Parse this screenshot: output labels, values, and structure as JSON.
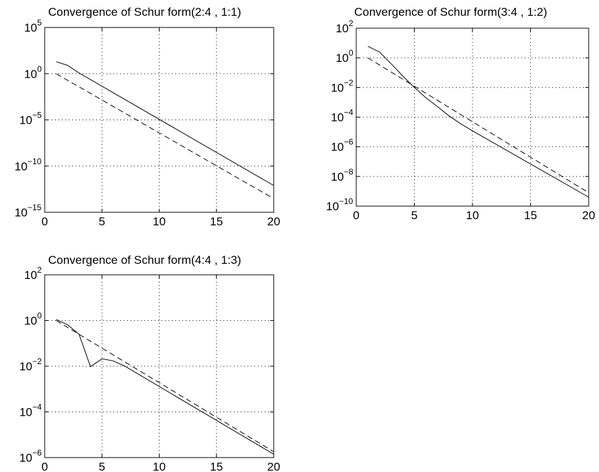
{
  "chart_data": [
    {
      "type": "line",
      "title": "Convergence of Schur form(2:4 , 1:1)",
      "xlim": [
        0,
        20
      ],
      "xticks": [
        0,
        5,
        10,
        15,
        20
      ],
      "yscale": "log",
      "ylim": [
        1e-15,
        100000.0
      ],
      "yticks": [
        {
          "base": "10",
          "exp": "5",
          "value": 100000.0
        },
        {
          "base": "10",
          "exp": "0",
          "value": 1
        },
        {
          "base": "10",
          "exp": "−5",
          "value": 1e-05
        },
        {
          "base": "10",
          "exp": "−10",
          "value": 1e-10
        },
        {
          "base": "10",
          "exp": "−15",
          "value": 1e-15
        }
      ],
      "grid": true,
      "series": [
        {
          "style": "solid",
          "x": [
            1,
            2,
            3,
            20
          ],
          "y": [
            20,
            8,
            1.2,
            8e-13
          ]
        },
        {
          "style": "dashed",
          "x": [
            1,
            20
          ],
          "y": [
            1,
            3e-14
          ]
        }
      ]
    },
    {
      "type": "line",
      "title": "Convergence of Schur form(3:4 , 1:2)",
      "xlim": [
        0,
        20
      ],
      "xticks": [
        0,
        5,
        10,
        15,
        20
      ],
      "yscale": "log",
      "ylim": [
        1e-10,
        100.0
      ],
      "yticks": [
        {
          "base": "10",
          "exp": "2",
          "value": 100.0
        },
        {
          "base": "10",
          "exp": "0",
          "value": 1
        },
        {
          "base": "10",
          "exp": "−2",
          "value": 0.01
        },
        {
          "base": "10",
          "exp": "−4",
          "value": 0.0001
        },
        {
          "base": "10",
          "exp": "−6",
          "value": 1e-06
        },
        {
          "base": "10",
          "exp": "−8",
          "value": 1e-08
        },
        {
          "base": "10",
          "exp": "−10",
          "value": 1e-10
        }
      ],
      "grid": true,
      "series": [
        {
          "style": "solid",
          "x": [
            1,
            2,
            3,
            4,
            5,
            6,
            7,
            8,
            9,
            10,
            20
          ],
          "y": [
            6,
            2.5,
            0.4,
            0.06,
            0.01,
            0.002,
            0.0005,
            0.00012,
            3.5e-05,
            1.2e-05,
            4e-10
          ]
        },
        {
          "style": "dashed",
          "x": [
            1,
            20
          ],
          "y": [
            1,
            8e-10
          ]
        }
      ]
    },
    {
      "type": "line",
      "title": "Convergence of Schur form(4:4 , 1:3)",
      "xlim": [
        0,
        20
      ],
      "xticks": [
        0,
        5,
        10,
        15,
        20
      ],
      "yscale": "log",
      "ylim": [
        1e-06,
        100.0
      ],
      "yticks": [
        {
          "base": "10",
          "exp": "2",
          "value": 100.0
        },
        {
          "base": "10",
          "exp": "0",
          "value": 1
        },
        {
          "base": "10",
          "exp": "−2",
          "value": 0.01
        },
        {
          "base": "10",
          "exp": "−4",
          "value": 0.0001
        },
        {
          "base": "10",
          "exp": "−6",
          "value": 1e-06
        }
      ],
      "grid": true,
      "series": [
        {
          "style": "solid",
          "x": [
            1,
            2,
            3,
            4,
            5,
            6,
            7,
            20
          ],
          "y": [
            1.1,
            0.65,
            0.25,
            0.0095,
            0.021,
            0.017,
            0.01,
            1.4e-06
          ]
        },
        {
          "style": "dashed",
          "x": [
            1,
            20
          ],
          "y": [
            1,
            1.8e-06
          ]
        }
      ]
    }
  ]
}
